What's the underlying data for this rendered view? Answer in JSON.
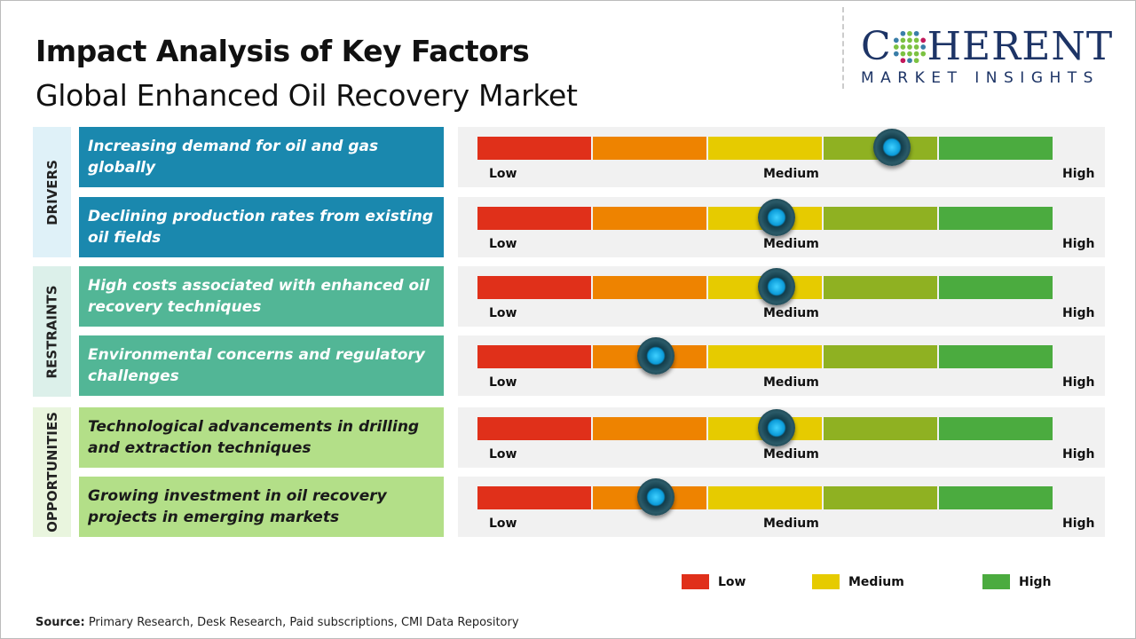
{
  "title": "Impact Analysis of Key Factors",
  "subtitle": "Global Enhanced Oil Recovery Market",
  "logo": {
    "line1_a": "C",
    "line1_b": "HERENT",
    "line2": "MARKET INSIGHTS"
  },
  "scale": {
    "low": "Low",
    "medium": "Medium",
    "high": "High"
  },
  "colors": {
    "red": "#e0301a",
    "orange": "#ee8300",
    "yellow": "#e6cb00",
    "olive": "#8fb122",
    "green": "#4bab3f"
  },
  "categories": [
    {
      "label": "DRIVERS",
      "bg": "#dff1f8",
      "box": "#1a88ae",
      "text": "#ffffff"
    },
    {
      "label": "RESTRAINTS",
      "bg": "#dcf0ea",
      "box": "#52b696",
      "text": "#ffffff"
    },
    {
      "label": "OPPORTUNITIES",
      "bg": "#e9f5de",
      "box": "#b3df88",
      "text": "#1a1a1a"
    }
  ],
  "factors": [
    {
      "text": "Increasing demand for oil and gas globally",
      "category": 0,
      "impact_pct": 72
    },
    {
      "text": "Declining production rates from existing oil fields",
      "category": 0,
      "impact_pct": 52
    },
    {
      "text": "High costs associated with enhanced oil recovery techniques",
      "category": 1,
      "impact_pct": 52
    },
    {
      "text": "Environmental concerns and regulatory challenges",
      "category": 1,
      "impact_pct": 31
    },
    {
      "text": "Technological advancements in drilling and extraction techniques",
      "category": 2,
      "impact_pct": 52
    },
    {
      "text": "Growing investment in oil recovery projects in emerging markets",
      "category": 2,
      "impact_pct": 31
    }
  ],
  "legend": [
    {
      "label": "Low",
      "color": "#e0301a"
    },
    {
      "label": "Medium",
      "color": "#e6cb00"
    },
    {
      "label": "High",
      "color": "#4bab3f"
    }
  ],
  "source": {
    "label": "Source:",
    "text": " Primary Research, Desk Research, Paid subscriptions, CMI Data Repository"
  }
}
